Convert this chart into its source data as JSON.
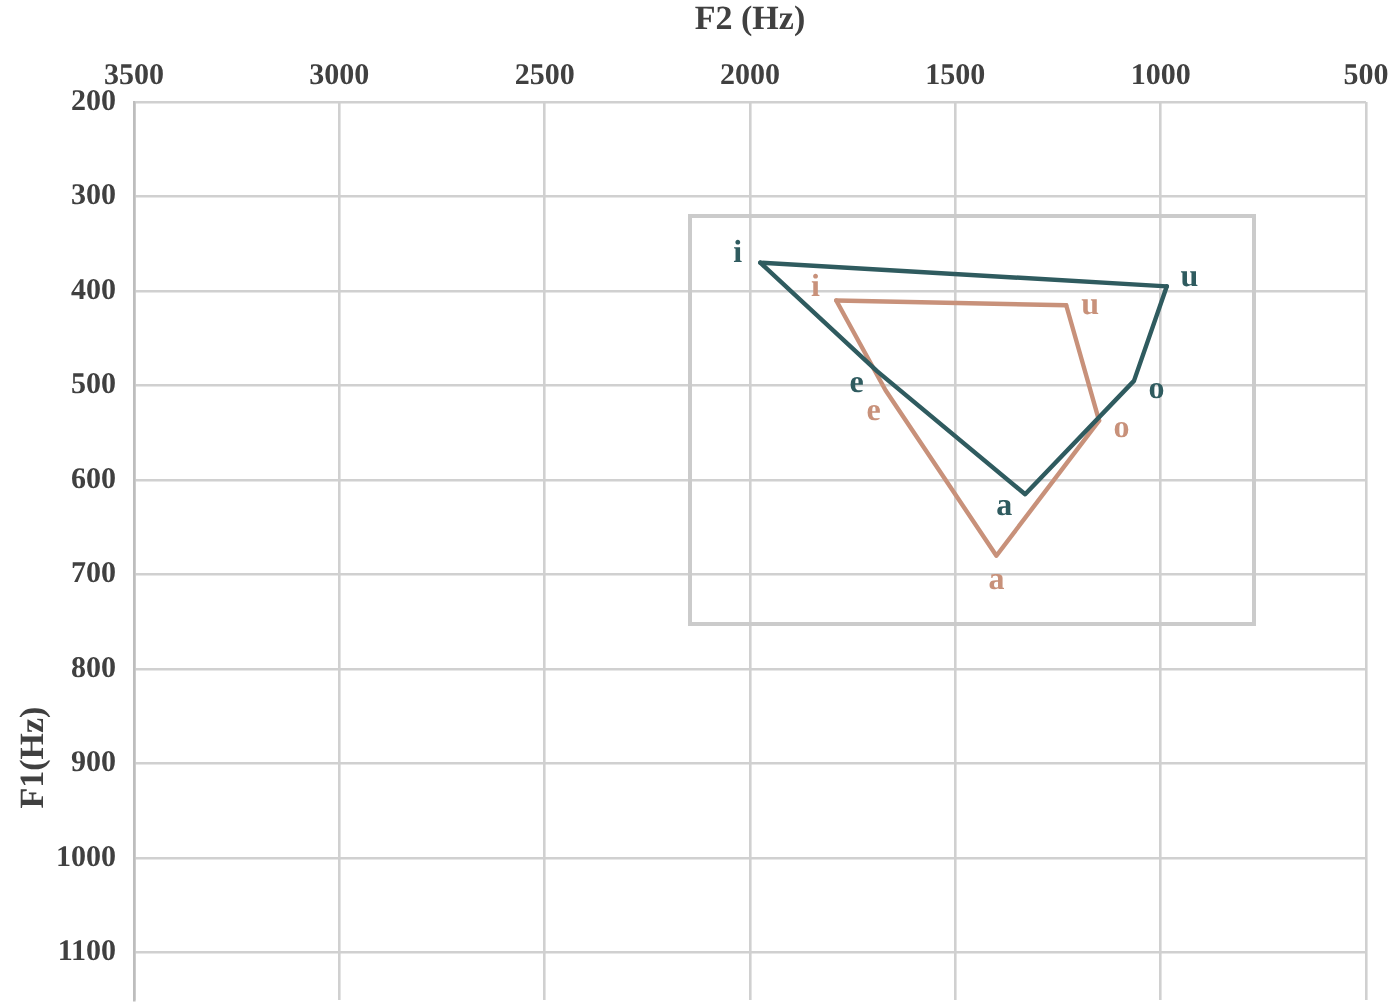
{
  "chart_data": {
    "type": "line",
    "xlabel": "F2 (Hz)",
    "ylabel": "F1(Hz)",
    "xlim": [
      3500,
      500
    ],
    "ylim": [
      1150,
      200
    ],
    "xticks": [
      3500,
      3000,
      2500,
      2000,
      1500,
      1000,
      500
    ],
    "yticks": [
      200,
      300,
      400,
      500,
      600,
      700,
      800,
      900,
      1000,
      1100
    ],
    "grid": true,
    "marker": "none",
    "series": [
      {
        "color": "#2f5b5f",
        "x": [
          1975,
          985
        ],
        "values": [
          370,
          395
        ],
        "value_labels": [
          "i",
          "u"
        ]
      },
      {
        "color": "#2f5b5f",
        "x": [
          985,
          1065,
          1330,
          1690,
          1975
        ],
        "values": [
          395,
          495,
          615,
          485,
          370
        ],
        "value_labels": [
          null,
          "o",
          "a",
          "e",
          null
        ]
      },
      {
        "color": "#c8917a",
        "x": [
          1790,
          1230
        ],
        "values": [
          410,
          415
        ],
        "value_labels": [
          "i",
          "u"
        ]
      },
      {
        "color": "#c8917a",
        "x": [
          1230,
          1150
        ],
        "values": [
          415,
          537
        ],
        "value_labels": [
          null,
          "o"
        ]
      },
      {
        "color": "#c8917a",
        "x": [
          1150,
          1400,
          1670,
          1790
        ],
        "values": [
          537,
          680,
          505,
          410
        ],
        "value_labels": [
          null,
          "a",
          "e",
          null
        ]
      }
    ]
  }
}
